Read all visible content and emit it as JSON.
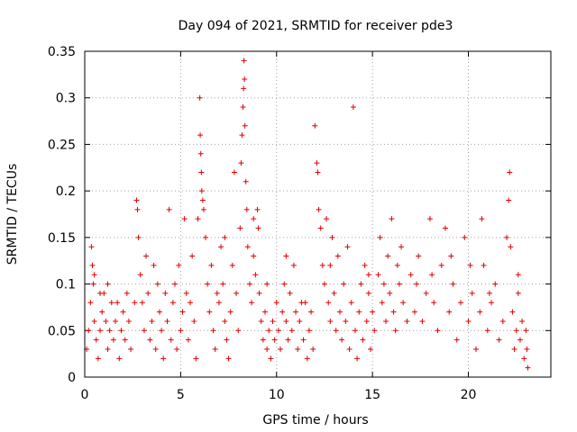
{
  "chart_data": {
    "type": "scatter",
    "title": "Day 094 of 2021, SRMTID for receiver pde3",
    "xlabel": "GPS time / hours",
    "ylabel": "SRMTID / TECUs",
    "xlim": [
      0,
      24.3
    ],
    "ylim": [
      0,
      0.35
    ],
    "x_ticks": [
      0,
      5,
      10,
      15,
      20
    ],
    "x_tick_labels": [
      "0",
      "5",
      "10",
      "15",
      "20"
    ],
    "y_ticks": [
      0,
      0.05,
      0.1,
      0.15,
      0.2,
      0.25,
      0.3,
      0.35
    ],
    "y_tick_labels": [
      "0",
      "0.05",
      "0.1",
      "0.15",
      "0.2",
      "0.25",
      "0.3",
      "0.35"
    ],
    "grid": true,
    "marker": "plus",
    "color": "#e00000",
    "series": [
      {
        "name": "SRMTID",
        "points": [
          [
            0.1,
            0.03
          ],
          [
            0.2,
            0.05
          ],
          [
            0.3,
            0.08
          ],
          [
            0.35,
            0.14
          ],
          [
            0.4,
            0.12
          ],
          [
            0.45,
            0.1
          ],
          [
            0.5,
            0.06
          ],
          [
            0.6,
            0.04
          ],
          [
            0.7,
            0.02
          ],
          [
            0.8,
            0.05
          ],
          [
            0.9,
            0.07
          ],
          [
            1.0,
            0.09
          ],
          [
            1.1,
            0.06
          ],
          [
            1.2,
            0.03
          ],
          [
            1.3,
            0.05
          ],
          [
            1.4,
            0.08
          ],
          [
            1.5,
            0.04
          ],
          [
            1.6,
            0.06
          ],
          [
            1.8,
            0.02
          ],
          [
            1.9,
            0.05
          ],
          [
            2.0,
            0.07
          ],
          [
            2.1,
            0.04
          ],
          [
            2.3,
            0.06
          ],
          [
            2.4,
            0.03
          ],
          [
            2.6,
            0.08
          ],
          [
            2.7,
            0.19
          ],
          [
            2.75,
            0.18
          ],
          [
            2.8,
            0.15
          ],
          [
            2.9,
            0.11
          ],
          [
            3.0,
            0.08
          ],
          [
            3.1,
            0.05
          ],
          [
            3.2,
            0.13
          ],
          [
            3.3,
            0.09
          ],
          [
            3.4,
            0.04
          ],
          [
            3.5,
            0.06
          ],
          [
            3.7,
            0.03
          ],
          [
            3.8,
            0.1
          ],
          [
            3.9,
            0.07
          ],
          [
            4.0,
            0.05
          ],
          [
            4.1,
            0.02
          ],
          [
            4.2,
            0.09
          ],
          [
            4.3,
            0.06
          ],
          [
            4.4,
            0.18
          ],
          [
            4.5,
            0.04
          ],
          [
            4.6,
            0.08
          ],
          [
            4.8,
            0.03
          ],
          [
            4.9,
            0.12
          ],
          [
            5.0,
            0.05
          ],
          [
            5.1,
            0.07
          ],
          [
            5.2,
            0.17
          ],
          [
            5.3,
            0.09
          ],
          [
            5.4,
            0.04
          ],
          [
            5.6,
            0.13
          ],
          [
            5.7,
            0.06
          ],
          [
            5.8,
            0.02
          ],
          [
            5.9,
            0.17
          ],
          [
            6.0,
            0.3
          ],
          [
            6.02,
            0.26
          ],
          [
            6.05,
            0.24
          ],
          [
            6.08,
            0.22
          ],
          [
            6.1,
            0.2
          ],
          [
            6.15,
            0.19
          ],
          [
            6.2,
            0.18
          ],
          [
            6.3,
            0.15
          ],
          [
            6.4,
            0.1
          ],
          [
            6.5,
            0.07
          ],
          [
            6.6,
            0.12
          ],
          [
            6.7,
            0.05
          ],
          [
            6.8,
            0.03
          ],
          [
            7.0,
            0.08
          ],
          [
            7.1,
            0.14
          ],
          [
            7.2,
            0.1
          ],
          [
            7.3,
            0.06
          ],
          [
            7.4,
            0.04
          ],
          [
            7.5,
            0.02
          ],
          [
            7.6,
            0.07
          ],
          [
            7.7,
            0.12
          ],
          [
            7.8,
            0.22
          ],
          [
            7.9,
            0.09
          ],
          [
            8.0,
            0.05
          ],
          [
            8.1,
            0.16
          ],
          [
            8.15,
            0.23
          ],
          [
            8.2,
            0.26
          ],
          [
            8.25,
            0.29
          ],
          [
            8.28,
            0.31
          ],
          [
            8.3,
            0.34
          ],
          [
            8.33,
            0.32
          ],
          [
            8.35,
            0.27
          ],
          [
            8.4,
            0.21
          ],
          [
            8.45,
            0.18
          ],
          [
            8.5,
            0.14
          ],
          [
            8.6,
            0.1
          ],
          [
            8.7,
            0.08
          ],
          [
            8.8,
            0.13
          ],
          [
            8.9,
            0.11
          ],
          [
            9.0,
            0.18
          ],
          [
            9.05,
            0.16
          ],
          [
            9.1,
            0.09
          ],
          [
            9.2,
            0.06
          ],
          [
            9.3,
            0.04
          ],
          [
            9.4,
            0.07
          ],
          [
            9.5,
            0.03
          ],
          [
            9.6,
            0.05
          ],
          [
            9.7,
            0.02
          ],
          [
            9.8,
            0.06
          ],
          [
            9.9,
            0.04
          ],
          [
            10.0,
            0.08
          ],
          [
            10.1,
            0.05
          ],
          [
            10.2,
            0.03
          ],
          [
            10.3,
            0.07
          ],
          [
            10.4,
            0.1
          ],
          [
            10.5,
            0.06
          ],
          [
            10.6,
            0.04
          ],
          [
            10.7,
            0.09
          ],
          [
            10.8,
            0.05
          ],
          [
            10.9,
            0.12
          ],
          [
            11.0,
            0.07
          ],
          [
            11.1,
            0.03
          ],
          [
            11.2,
            0.06
          ],
          [
            11.3,
            0.08
          ],
          [
            11.4,
            0.04
          ],
          [
            11.6,
            0.02
          ],
          [
            11.7,
            0.05
          ],
          [
            11.8,
            0.07
          ],
          [
            11.9,
            0.03
          ],
          [
            12.0,
            0.27
          ],
          [
            12.1,
            0.23
          ],
          [
            12.15,
            0.22
          ],
          [
            12.2,
            0.18
          ],
          [
            12.3,
            0.16
          ],
          [
            12.4,
            0.12
          ],
          [
            12.5,
            0.1
          ],
          [
            12.6,
            0.17
          ],
          [
            12.7,
            0.08
          ],
          [
            12.8,
            0.06
          ],
          [
            12.9,
            0.15
          ],
          [
            13.0,
            0.09
          ],
          [
            13.1,
            0.05
          ],
          [
            13.2,
            0.13
          ],
          [
            13.3,
            0.07
          ],
          [
            13.4,
            0.04
          ],
          [
            13.5,
            0.1
          ],
          [
            13.6,
            0.06
          ],
          [
            13.8,
            0.03
          ],
          [
            13.9,
            0.08
          ],
          [
            14.0,
            0.29
          ],
          [
            14.1,
            0.05
          ],
          [
            14.2,
            0.02
          ],
          [
            14.3,
            0.07
          ],
          [
            14.4,
            0.1
          ],
          [
            14.5,
            0.04
          ],
          [
            14.6,
            0.12
          ],
          [
            14.7,
            0.06
          ],
          [
            14.8,
            0.09
          ],
          [
            14.9,
            0.03
          ],
          [
            15.0,
            0.07
          ],
          [
            15.1,
            0.05
          ],
          [
            15.3,
            0.11
          ],
          [
            15.4,
            0.15
          ],
          [
            15.5,
            0.08
          ],
          [
            15.7,
            0.06
          ],
          [
            15.8,
            0.13
          ],
          [
            15.9,
            0.09
          ],
          [
            16.0,
            0.17
          ],
          [
            16.1,
            0.07
          ],
          [
            16.2,
            0.05
          ],
          [
            16.4,
            0.1
          ],
          [
            16.5,
            0.14
          ],
          [
            16.6,
            0.08
          ],
          [
            16.8,
            0.06
          ],
          [
            17.0,
            0.11
          ],
          [
            17.2,
            0.07
          ],
          [
            17.4,
            0.13
          ],
          [
            17.6,
            0.06
          ],
          [
            17.8,
            0.09
          ],
          [
            18.0,
            0.17
          ],
          [
            18.2,
            0.08
          ],
          [
            18.4,
            0.05
          ],
          [
            18.6,
            0.12
          ],
          [
            18.8,
            0.16
          ],
          [
            19.0,
            0.07
          ],
          [
            19.2,
            0.1
          ],
          [
            19.4,
            0.04
          ],
          [
            19.6,
            0.08
          ],
          [
            19.8,
            0.15
          ],
          [
            20.0,
            0.06
          ],
          [
            20.2,
            0.09
          ],
          [
            20.4,
            0.03
          ],
          [
            20.6,
            0.07
          ],
          [
            20.7,
            0.17
          ],
          [
            20.8,
            0.12
          ],
          [
            21.0,
            0.05
          ],
          [
            21.2,
            0.08
          ],
          [
            21.4,
            0.1
          ],
          [
            21.6,
            0.04
          ],
          [
            21.8,
            0.06
          ],
          [
            22.0,
            0.15
          ],
          [
            22.1,
            0.19
          ],
          [
            22.15,
            0.22
          ],
          [
            22.2,
            0.14
          ],
          [
            22.3,
            0.07
          ],
          [
            22.4,
            0.03
          ],
          [
            22.5,
            0.05
          ],
          [
            22.6,
            0.09
          ],
          [
            22.7,
            0.04
          ],
          [
            22.8,
            0.06
          ],
          [
            22.9,
            0.02
          ],
          [
            23.0,
            0.05
          ],
          [
            23.05,
            0.03
          ],
          [
            23.1,
            0.01
          ],
          [
            0.5,
            0.11
          ],
          [
            0.8,
            0.09
          ],
          [
            1.2,
            0.1
          ],
          [
            1.7,
            0.08
          ],
          [
            2.2,
            0.09
          ],
          [
            3.6,
            0.12
          ],
          [
            4.7,
            0.1
          ],
          [
            5.5,
            0.08
          ],
          [
            6.9,
            0.09
          ],
          [
            7.3,
            0.15
          ],
          [
            8.8,
            0.17
          ],
          [
            9.5,
            0.1
          ],
          [
            10.5,
            0.13
          ],
          [
            11.5,
            0.08
          ],
          [
            12.8,
            0.12
          ],
          [
            13.7,
            0.14
          ],
          [
            14.8,
            0.11
          ],
          [
            15.6,
            0.1
          ],
          [
            16.3,
            0.12
          ],
          [
            17.3,
            0.1
          ],
          [
            18.1,
            0.11
          ],
          [
            19.1,
            0.13
          ],
          [
            20.1,
            0.12
          ],
          [
            21.1,
            0.09
          ],
          [
            22.6,
            0.11
          ]
        ]
      }
    ]
  }
}
